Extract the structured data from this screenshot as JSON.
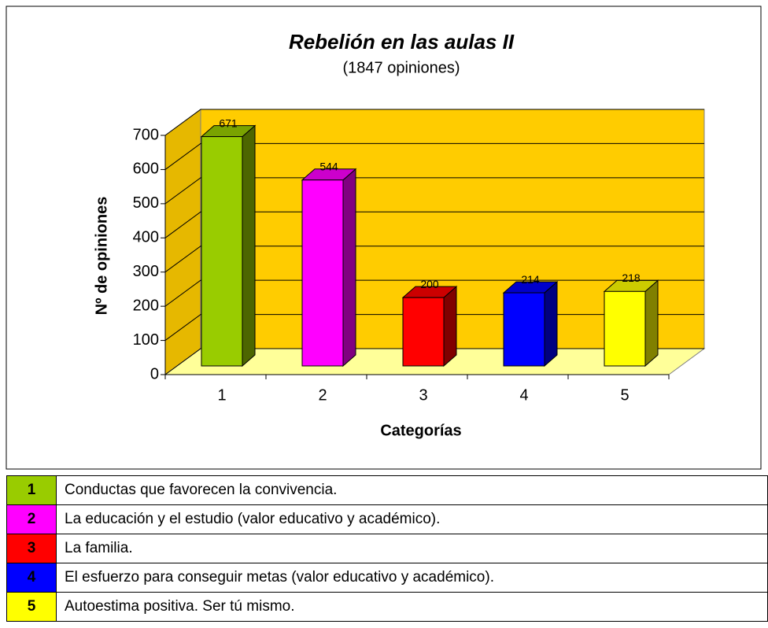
{
  "chart_data": {
    "type": "bar3d",
    "title": "Rebelión en las aulas II",
    "subtitle": "(1847 opiniones)",
    "x_label": "Categorías",
    "y_label": "Nº de opiniones",
    "categories": [
      "1",
      "2",
      "3",
      "4",
      "5"
    ],
    "values": [
      671,
      544,
      200,
      214,
      218
    ],
    "colors": [
      "#99cc00",
      "#ff00ff",
      "#ff0000",
      "#0000ff",
      "#ffff00"
    ],
    "ylim": [
      0,
      700
    ],
    "yticks": [
      0,
      100,
      200,
      300,
      400,
      500,
      600,
      700
    ],
    "grid": true
  },
  "table": {
    "rows": [
      [
        "1",
        "Conductas que favorecen la convivencia."
      ],
      [
        "2",
        "La educación y el estudio (valor educativo y académico)."
      ],
      [
        "3",
        "La familia."
      ],
      [
        "4",
        "El esfuerzo para conseguir metas (valor educativo y académico)."
      ],
      [
        "5",
        "Autoestima positiva. Ser tú mismo."
      ]
    ]
  }
}
